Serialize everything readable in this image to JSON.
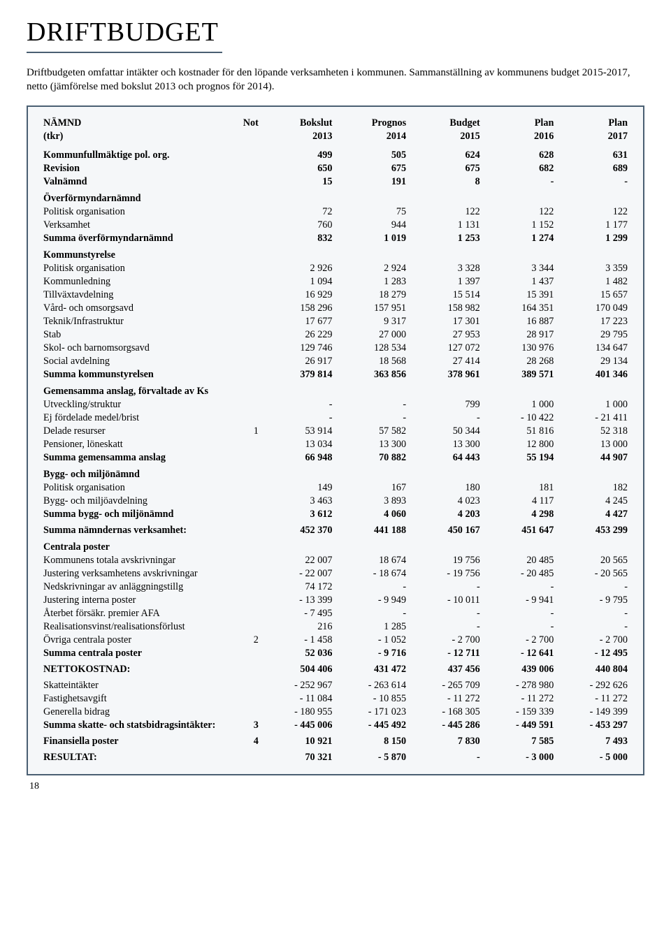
{
  "title": "DRIFTBUDGET",
  "intro": "Driftbudgeten omfattar intäkter och kostnader för den löpande verksamheten i kommunen. Sammanställning av kommunens budget 2015-2017, netto (jämförelse med bokslut 2013 och prognos för 2014).",
  "page_number": "18",
  "headers": {
    "namnd": "NÄMND",
    "tkr": "(tkr)",
    "not": "Not",
    "bokslut": "Bokslut",
    "y2013": "2013",
    "prognos": "Prognos",
    "y2014": "2014",
    "budget": "Budget",
    "y2015": "2015",
    "plan1": "Plan",
    "y2016": "2016",
    "plan2": "Plan",
    "y2017": "2017"
  },
  "rows": [
    {
      "t": "bold",
      "label": "Kommunfullmäktige pol. org.",
      "c": [
        "",
        "499",
        "505",
        "624",
        "628",
        "631"
      ]
    },
    {
      "t": "bold",
      "label": "Revision",
      "c": [
        "",
        "650",
        "675",
        "675",
        "682",
        "689"
      ]
    },
    {
      "t": "bold",
      "label": "Valnämnd",
      "c": [
        "",
        "15",
        "191",
        "8",
        "-",
        "-"
      ]
    },
    {
      "t": "section",
      "label": "Överförmyndarnämnd"
    },
    {
      "t": "row",
      "label": "Politisk organisation",
      "c": [
        "",
        "72",
        "75",
        "122",
        "122",
        "122"
      ]
    },
    {
      "t": "row",
      "label": "Verksamhet",
      "c": [
        "",
        "760",
        "944",
        "1 131",
        "1 152",
        "1 177"
      ]
    },
    {
      "t": "bold",
      "label": "Summa överförmyndarnämnd",
      "c": [
        "",
        "832",
        "1 019",
        "1 253",
        "1 274",
        "1 299"
      ]
    },
    {
      "t": "section",
      "label": "Kommunstyrelse"
    },
    {
      "t": "row",
      "label": "Politisk organisation",
      "c": [
        "",
        "2 926",
        "2 924",
        "3 328",
        "3 344",
        "3 359"
      ]
    },
    {
      "t": "row",
      "label": "Kommunledning",
      "c": [
        "",
        "1 094",
        "1 283",
        "1 397",
        "1 437",
        "1 482"
      ]
    },
    {
      "t": "row",
      "label": "Tillväxtavdelning",
      "c": [
        "",
        "16 929",
        "18 279",
        "15 514",
        "15 391",
        "15 657"
      ]
    },
    {
      "t": "row",
      "label": "Vård- och omsorgsavd",
      "c": [
        "",
        "158 296",
        "157 951",
        "158 982",
        "164 351",
        "170 049"
      ]
    },
    {
      "t": "row",
      "label": "Teknik/Infrastruktur",
      "c": [
        "",
        "17 677",
        "9 317",
        "17 301",
        "16 887",
        "17 223"
      ]
    },
    {
      "t": "row",
      "label": "Stab",
      "c": [
        "",
        "26 229",
        "27 000",
        "27 953",
        "28 917",
        "29 795"
      ]
    },
    {
      "t": "row",
      "label": "Skol- och barnomsorgsavd",
      "c": [
        "",
        "129 746",
        "128 534",
        "127 072",
        "130 976",
        "134 647"
      ]
    },
    {
      "t": "row",
      "label": "Social avdelning",
      "c": [
        "",
        "26 917",
        "18 568",
        "27 414",
        "28 268",
        "29 134"
      ]
    },
    {
      "t": "bold",
      "label": "Summa kommunstyrelsen",
      "c": [
        "",
        "379 814",
        "363 856",
        "378 961",
        "389 571",
        "401 346"
      ]
    },
    {
      "t": "section",
      "label": "Gemensamma anslag, förvaltade av Ks"
    },
    {
      "t": "row",
      "label": "Utveckling/struktur",
      "c": [
        "",
        "-",
        "-",
        "799",
        "1 000",
        "1 000"
      ]
    },
    {
      "t": "row",
      "label": "Ej fördelade medel/brist",
      "c": [
        "",
        "-",
        "-",
        "-",
        "-   10 422",
        "-   21 411"
      ]
    },
    {
      "t": "row",
      "label": "Delade resurser",
      "c": [
        "1",
        "53 914",
        "57 582",
        "50 344",
        "51 816",
        "52 318"
      ]
    },
    {
      "t": "row",
      "label": "Pensioner, löneskatt",
      "c": [
        "",
        "13 034",
        "13 300",
        "13 300",
        "12 800",
        "13 000"
      ]
    },
    {
      "t": "bold",
      "label": "Summa gemensamma anslag",
      "c": [
        "",
        "66 948",
        "70 882",
        "64 443",
        "55 194",
        "44 907"
      ]
    },
    {
      "t": "section",
      "label": "Bygg- och miljönämnd"
    },
    {
      "t": "row",
      "label": "Politisk organisation",
      "c": [
        "",
        "149",
        "167",
        "180",
        "181",
        "182"
      ]
    },
    {
      "t": "row",
      "label": "Bygg- och miljöavdelning",
      "c": [
        "",
        "3 463",
        "3 893",
        "4 023",
        "4 117",
        "4 245"
      ]
    },
    {
      "t": "bold",
      "label": "Summa bygg- och miljönämnd",
      "c": [
        "",
        "3 612",
        "4 060",
        "4 203",
        "4 298",
        "4 427"
      ]
    },
    {
      "t": "spacer"
    },
    {
      "t": "bold",
      "label": "Summa nämndernas verksamhet:",
      "c": [
        "",
        "452 370",
        "441 188",
        "450 167",
        "451 647",
        "453 299"
      ]
    },
    {
      "t": "section",
      "label": "Centrala poster"
    },
    {
      "t": "row",
      "label": "Kommunens totala avskrivningar",
      "c": [
        "",
        "22 007",
        "18 674",
        "19 756",
        "20 485",
        "20 565"
      ]
    },
    {
      "t": "row",
      "label": "Justering verksamhetens avskrivningar",
      "c": [
        "",
        "-   22 007",
        "-   18 674",
        "-   19 756",
        "-   20 485",
        "-   20 565"
      ]
    },
    {
      "t": "row",
      "label": "Nedskrivningar av anläggningstillg",
      "c": [
        "",
        "74 172",
        "-",
        "-",
        "-",
        "-"
      ]
    },
    {
      "t": "row",
      "label": "Justering interna poster",
      "c": [
        "",
        "-   13 399",
        "-     9 949",
        "-   10 011",
        "-     9 941",
        "-     9 795"
      ]
    },
    {
      "t": "row",
      "label": "Återbet försäkr. premier AFA",
      "c": [
        "",
        "-     7 495",
        "-",
        "-",
        "-",
        "-"
      ]
    },
    {
      "t": "row",
      "label": "Realisationsvinst/realisationsförlust",
      "c": [
        "",
        "216",
        "1 285",
        "-",
        "-",
        "-"
      ]
    },
    {
      "t": "row",
      "label": "Övriga centrala poster",
      "c": [
        "2",
        "-     1 458",
        "-     1 052",
        "-     2 700",
        "-     2 700",
        "-     2 700"
      ]
    },
    {
      "t": "bold",
      "label": "Summa centrala poster",
      "c": [
        "",
        "52 036",
        "-   9 716",
        "-  12 711",
        "-  12 641",
        "-  12 495"
      ]
    },
    {
      "t": "spacer"
    },
    {
      "t": "bold",
      "label": "NETTOKOSTNAD:",
      "c": [
        "",
        "504 406",
        "431 472",
        "437 456",
        "439 006",
        "440 804"
      ]
    },
    {
      "t": "spacer"
    },
    {
      "t": "row",
      "label": "Skatteintäkter",
      "c": [
        "",
        "- 252 967",
        "- 263 614",
        "- 265 709",
        "- 278 980",
        "- 292 626"
      ]
    },
    {
      "t": "row",
      "label": "Fastighetsavgift",
      "c": [
        "",
        "-   11 084",
        "-   10 855",
        "-   11 272",
        "-   11 272",
        "-   11 272"
      ]
    },
    {
      "t": "row",
      "label": "Generella bidrag",
      "c": [
        "",
        "- 180 955",
        "- 171 023",
        "- 168 305",
        "- 159 339",
        "- 149 399"
      ]
    },
    {
      "t": "bold",
      "label": "Summa skatte- och statsbidragsintäkter:",
      "c": [
        "3",
        "- 445 006",
        "- 445 492",
        "- 445 286",
        "- 449 591",
        "- 453 297"
      ]
    },
    {
      "t": "spacer"
    },
    {
      "t": "bold",
      "label": "Finansiella poster",
      "c": [
        "4",
        "10 921",
        "8 150",
        "7 830",
        "7 585",
        "7 493"
      ]
    },
    {
      "t": "spacer"
    },
    {
      "t": "bold",
      "label": "RESULTAT:",
      "c": [
        "",
        "70 321",
        "-   5 870",
        "-",
        "-   3 000",
        "-   5 000"
      ]
    }
  ]
}
